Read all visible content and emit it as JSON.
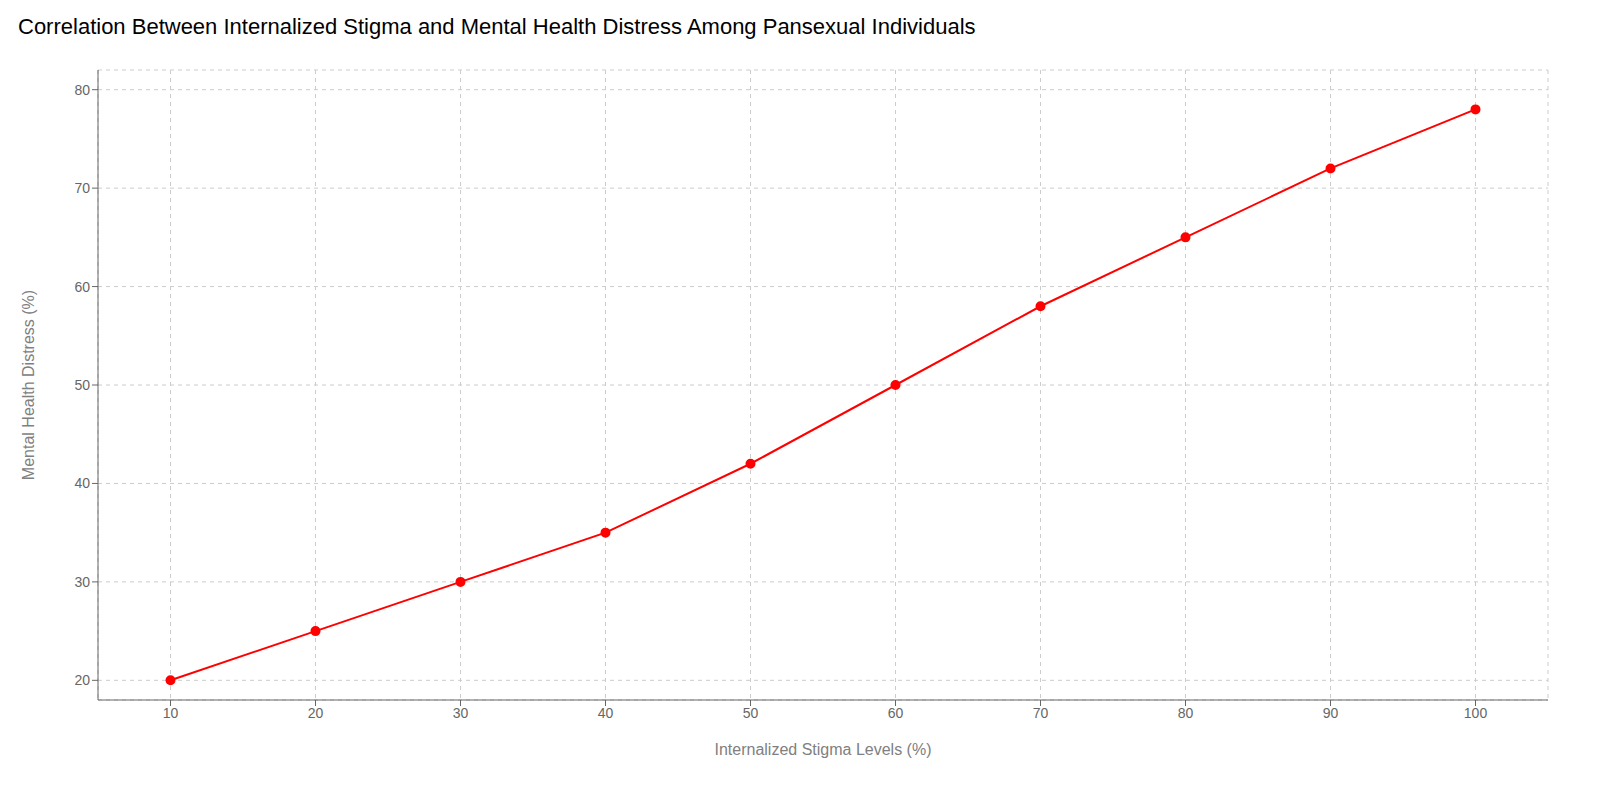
{
  "chart_data": {
    "type": "line",
    "title": "Correlation Between Internalized Stigma and Mental Health Distress Among Pansexual Individuals",
    "xlabel": "Internalized Stigma Levels (%)",
    "ylabel": "Mental Health Distress (%)",
    "x": [
      10,
      20,
      30,
      40,
      50,
      60,
      70,
      80,
      90,
      100
    ],
    "values": [
      20,
      25,
      30,
      35,
      42,
      50,
      58,
      65,
      72,
      78
    ],
    "color": "#ff0000",
    "marker": "circle",
    "xlim": [
      5,
      105
    ],
    "ylim": [
      18,
      82
    ],
    "xticks": [
      10,
      20,
      30,
      40,
      50,
      60,
      70,
      80,
      90,
      100
    ],
    "yticks": [
      20,
      30,
      40,
      50,
      60,
      70,
      80
    ],
    "grid": true
  }
}
